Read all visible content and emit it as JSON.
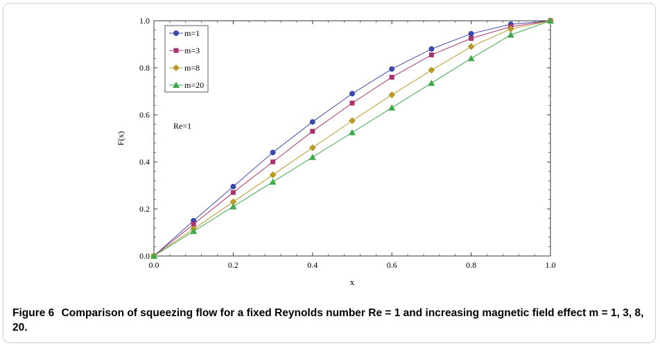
{
  "figure": {
    "label": "Figure 6",
    "caption": "Comparison of squeezing flow for a fixed Reynolds number Re = 1 and increasing magnetic field effect m = 1, 3, 8, 20."
  },
  "chart_data": {
    "type": "line",
    "xlabel": "x",
    "ylabel": "F(x)",
    "xlim": [
      0,
      1
    ],
    "ylim": [
      0,
      1
    ],
    "x_ticks": [
      "0.0",
      "0.2",
      "0.4",
      "0.6",
      "0.8",
      "1.0"
    ],
    "y_ticks": [
      "0.0",
      "0.2",
      "0.4",
      "0.6",
      "0.8",
      "1.0"
    ],
    "grid": false,
    "legend_position": "top-left",
    "annotation": "Re=1",
    "x": [
      0,
      0.1,
      0.2,
      0.3,
      0.4,
      0.5,
      0.6,
      0.7,
      0.8,
      0.9,
      1.0
    ],
    "series": [
      {
        "name": "m=1",
        "color": "#3b4aa8",
        "marker": "circle",
        "values": [
          0,
          0.15,
          0.295,
          0.44,
          0.57,
          0.69,
          0.795,
          0.88,
          0.945,
          0.985,
          1.0
        ]
      },
      {
        "name": "m=3",
        "color": "#a8336e",
        "marker": "square",
        "values": [
          0,
          0.135,
          0.27,
          0.4,
          0.53,
          0.65,
          0.76,
          0.855,
          0.925,
          0.975,
          1.0
        ]
      },
      {
        "name": "m=8",
        "color": "#b89a2a",
        "marker": "diamond",
        "values": [
          0,
          0.115,
          0.23,
          0.345,
          0.46,
          0.575,
          0.685,
          0.79,
          0.89,
          0.965,
          1.0
        ]
      },
      {
        "name": "m=20",
        "color": "#3fa84a",
        "marker": "triangle",
        "values": [
          0,
          0.105,
          0.21,
          0.315,
          0.42,
          0.525,
          0.63,
          0.735,
          0.84,
          0.94,
          1.0
        ]
      }
    ]
  }
}
